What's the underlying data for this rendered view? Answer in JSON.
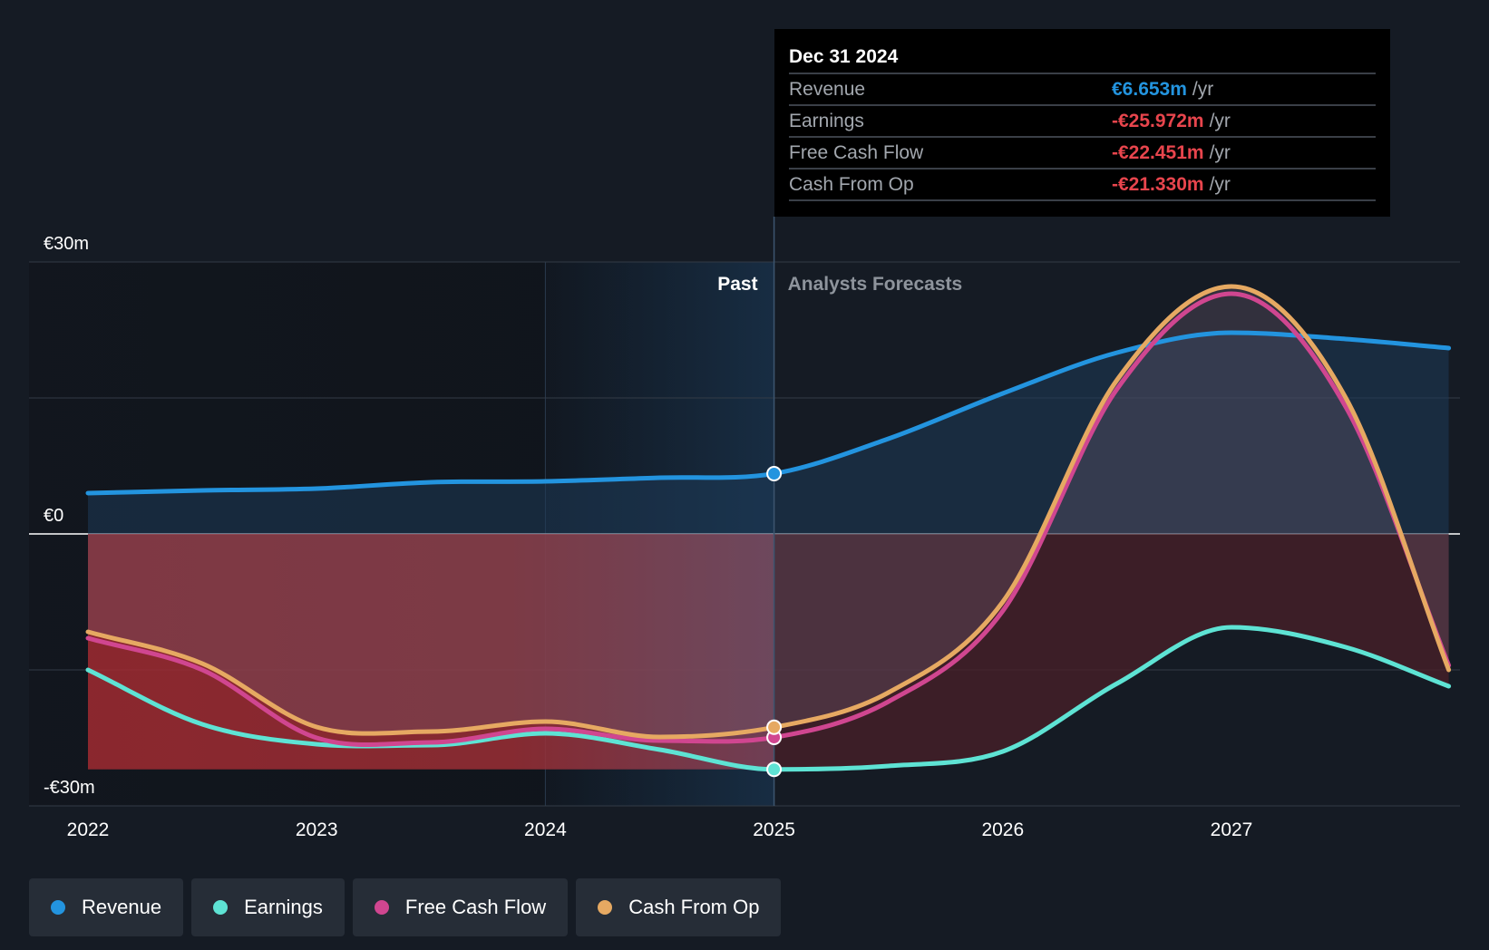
{
  "chart_data": {
    "type": "area",
    "currency": "€",
    "x_ticks": [
      "2022",
      "2023",
      "2024",
      "2025",
      "2026",
      "2027"
    ],
    "y_ticks": [
      {
        "value": 30,
        "label": "€30m"
      },
      {
        "value": 0,
        "label": "€0"
      },
      {
        "value": -30,
        "label": "-€30m"
      }
    ],
    "ylim": [
      -30,
      30
    ],
    "xlim": [
      2022.0,
      2027.95
    ],
    "units": "€m",
    "past_label": "Past",
    "forecast_label": "Analysts Forecasts",
    "divider_x": 2025.0,
    "highlight_start_x": 2024.0,
    "grid": true,
    "series": [
      {
        "name": "Revenue",
        "color": "#2394df",
        "x": [
          2022.0,
          2022.5,
          2023.0,
          2023.5,
          2024.0,
          2024.5,
          2025.0,
          2025.5,
          2026.0,
          2026.5,
          2027.0,
          2027.5,
          2027.95
        ],
        "y": [
          4.5,
          4.8,
          5.0,
          5.7,
          5.8,
          6.2,
          6.653,
          10.5,
          15.5,
          20.0,
          22.2,
          21.5,
          20.5
        ]
      },
      {
        "name": "Earnings",
        "color": "#5ee3d4",
        "x": [
          2022.0,
          2022.5,
          2023.0,
          2023.5,
          2024.0,
          2024.5,
          2025.0,
          2025.5,
          2026.0,
          2026.5,
          2027.0,
          2027.5,
          2027.95
        ],
        "y": [
          -15.0,
          -21.0,
          -23.2,
          -23.3,
          -22.0,
          -23.8,
          -25.972,
          -25.6,
          -24.0,
          -16.5,
          -10.3,
          -12.5,
          -16.8
        ]
      },
      {
        "name": "Free Cash Flow",
        "color": "#d04690",
        "x": [
          2022.0,
          2022.5,
          2023.0,
          2023.5,
          2024.0,
          2024.5,
          2025.0,
          2025.5,
          2026.0,
          2026.5,
          2027.0,
          2027.5,
          2027.95
        ],
        "y": [
          -11.5,
          -15.0,
          -22.5,
          -23.0,
          -21.5,
          -22.8,
          -22.451,
          -18.5,
          -8.5,
          16.0,
          26.5,
          14.0,
          -14.5
        ]
      },
      {
        "name": "Cash From Op",
        "color": "#e6a962",
        "x": [
          2022.0,
          2022.5,
          2023.0,
          2023.5,
          2024.0,
          2024.5,
          2025.0,
          2025.5,
          2026.0,
          2026.5,
          2027.0,
          2027.5,
          2027.95
        ],
        "y": [
          -10.8,
          -14.3,
          -21.3,
          -21.8,
          -20.7,
          -22.4,
          -21.33,
          -17.5,
          -7.5,
          17.0,
          27.3,
          15.0,
          -15.0
        ]
      }
    ]
  },
  "tooltip": {
    "date": "Dec 31 2024",
    "rows": [
      {
        "label": "Revenue",
        "value": "€6.653m",
        "unit": "/yr",
        "color": "#2394df"
      },
      {
        "label": "Earnings",
        "value": "-€25.972m",
        "unit": "/yr",
        "color": "#e8454d"
      },
      {
        "label": "Free Cash Flow",
        "value": "-€22.451m",
        "unit": "/yr",
        "color": "#e8454d"
      },
      {
        "label": "Cash From Op",
        "value": "-€21.330m",
        "unit": "/yr",
        "color": "#e8454d"
      }
    ]
  },
  "legend": [
    {
      "label": "Revenue",
      "color": "#2394df"
    },
    {
      "label": "Earnings",
      "color": "#5ee3d4"
    },
    {
      "label": "Free Cash Flow",
      "color": "#d04690"
    },
    {
      "label": "Cash From Op",
      "color": "#e6a962"
    }
  ]
}
